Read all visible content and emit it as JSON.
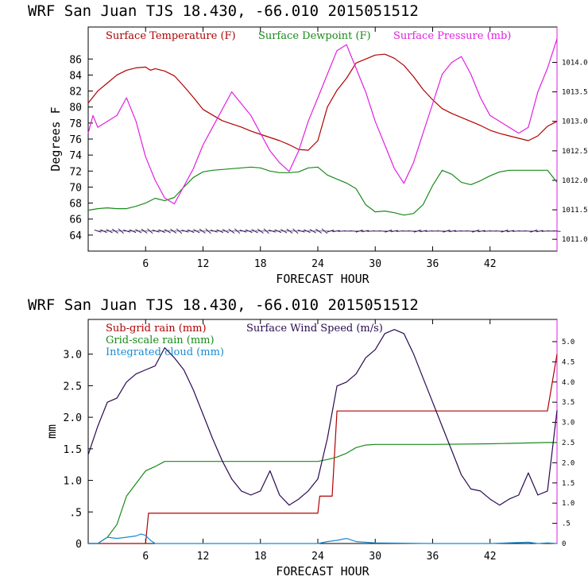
{
  "chart_data": [
    {
      "type": "line",
      "title": "WRF   San Juan TJS  18.430, -66.010  2015051512",
      "xlabel": "FORECAST HOUR",
      "ylabel": "Degrees F",
      "xlim": [
        0,
        49
      ],
      "ylim": [
        62,
        90
      ],
      "y2lim": [
        1010.8,
        1014.6
      ],
      "xticks": [
        "6",
        "12",
        "18",
        "24",
        "30",
        "36",
        "42"
      ],
      "yticks": [
        "64",
        "66",
        "68",
        "70",
        "72",
        "74",
        "76",
        "78",
        "80",
        "82",
        "84",
        "86"
      ],
      "y2ticks": [
        "1011.0",
        "1011.5",
        "1012.0",
        "1012.5",
        "1013.0",
        "1013.5",
        "1014.0"
      ],
      "colors": {
        "temp": "#b00000",
        "dew": "#1a8a1a",
        "pres": "#e020e0",
        "wind": "#2a0a50",
        "axis": "#000000"
      },
      "series": [
        {
          "name": "Surface Temperature (F)",
          "axis": "left",
          "x": [
            0,
            1,
            2,
            3,
            4,
            5,
            6,
            6.5,
            7,
            8,
            9,
            10,
            11,
            12,
            13,
            14,
            15,
            16,
            17,
            18,
            19,
            20,
            21,
            22,
            23,
            24,
            25,
            26,
            27,
            28,
            29,
            30,
            31,
            32,
            33,
            34,
            35,
            36,
            37,
            38,
            39,
            40,
            41,
            42,
            43,
            44,
            45,
            46,
            47,
            48,
            49
          ],
          "values": [
            80.5,
            82,
            83,
            84,
            84.6,
            84.9,
            85,
            84.6,
            84.8,
            84.5,
            83.9,
            82.6,
            81.2,
            79.7,
            79,
            78.3,
            77.9,
            77.5,
            77,
            76.6,
            76.2,
            75.8,
            75.3,
            74.7,
            74.6,
            75.8,
            80,
            82.1,
            83.6,
            85.5,
            86,
            86.5,
            86.6,
            86.1,
            85.2,
            83.8,
            82.2,
            80.9,
            79.8,
            79.2,
            78.7,
            78.2,
            77.7,
            77.1,
            76.7,
            76.4,
            76.1,
            75.8,
            76.4,
            77.6,
            78.2
          ]
        },
        {
          "name": "Surface Dewpoint (F)",
          "axis": "left",
          "x": [
            0,
            1,
            2,
            3,
            4,
            5,
            6,
            7,
            8,
            9,
            10,
            11,
            12,
            13,
            14,
            15,
            16,
            17,
            18,
            19,
            20,
            21,
            22,
            23,
            24,
            25,
            26,
            27,
            28,
            29,
            30,
            31,
            32,
            33,
            34,
            35,
            36,
            37,
            38,
            39,
            40,
            41,
            42,
            43,
            44,
            45,
            46,
            47,
            48,
            49
          ],
          "values": [
            67.1,
            67.3,
            67.4,
            67.3,
            67.3,
            67.6,
            68,
            68.6,
            68.3,
            68.7,
            70,
            71.2,
            71.9,
            72.1,
            72.2,
            72.3,
            72.4,
            72.5,
            72.4,
            72,
            71.8,
            71.8,
            71.9,
            72.4,
            72.5,
            71.5,
            71,
            70.5,
            69.8,
            67.8,
            66.9,
            67,
            66.8,
            66.5,
            66.7,
            67.8,
            70.2,
            72.1,
            71.6,
            70.6,
            70.3,
            70.8,
            71.4,
            71.9,
            72.1,
            72.1,
            72.1,
            72.1,
            72.1,
            70.6
          ]
        },
        {
          "name": "Surface Pressure (mb)",
          "axis": "right",
          "x": [
            0,
            0.5,
            1,
            2,
            3,
            4,
            5,
            6,
            7,
            8,
            9,
            10,
            11,
            12,
            13,
            14,
            15,
            16,
            17,
            18,
            19,
            20,
            21,
            22,
            23,
            24,
            25,
            26,
            27,
            28,
            29,
            30,
            31,
            32,
            33,
            34,
            35,
            36,
            37,
            38,
            39,
            40,
            41,
            42,
            43,
            44,
            45,
            46,
            47,
            48,
            49
          ],
          "values": [
            1012.8,
            1013.1,
            1012.9,
            1013.0,
            1013.1,
            1013.4,
            1013.0,
            1012.4,
            1012.0,
            1011.7,
            1011.6,
            1011.9,
            1012.2,
            1012.6,
            1012.9,
            1013.2,
            1013.5,
            1013.3,
            1013.1,
            1012.8,
            1012.5,
            1012.3,
            1012.15,
            1012.5,
            1013.0,
            1013.4,
            1013.8,
            1014.2,
            1014.3,
            1013.9,
            1013.5,
            1013.0,
            1012.6,
            1012.2,
            1011.95,
            1012.3,
            1012.8,
            1013.3,
            1013.8,
            1014.0,
            1014.1,
            1013.8,
            1013.4,
            1013.1,
            1013.0,
            1012.9,
            1012.8,
            1012.9,
            1013.5,
            1013.9,
            1014.4
          ]
        }
      ],
      "legend": [
        "Surface Temperature (F)",
        "Surface Dewpoint (F)",
        "Surface Pressure (mb)"
      ],
      "wind_barbs": {
        "y_value": 64.5,
        "from_x": 1,
        "to_x": 49,
        "count": 80
      }
    },
    {
      "type": "line",
      "title": "WRF   San Juan TJS  18.430, -66.010  2015051512",
      "xlabel": "FORECAST HOUR",
      "ylabel": "mm",
      "xlim": [
        0,
        49
      ],
      "ylim": [
        0,
        3.55
      ],
      "y2lim": [
        0,
        5.55
      ],
      "xticks": [
        "6",
        "12",
        "18",
        "24",
        "30",
        "36",
        "42"
      ],
      "yticks": [
        "0",
        " .5",
        "1.0",
        "1.5",
        "2.0",
        "2.5",
        "3.0"
      ],
      "y2ticks": [
        "0",
        ".5",
        "1.0",
        "1.5",
        "2.0",
        "2.5",
        "3.0",
        "3.5",
        "4.0",
        "4.5",
        "5.0"
      ],
      "series": [
        {
          "name": "Sub-grid rain (mm)",
          "axis": "left",
          "x": [
            0,
            6,
            6.3,
            24,
            24.2,
            25.5,
            26,
            26.2,
            48,
            49
          ],
          "values": [
            0,
            0,
            0.48,
            0.48,
            0.75,
            0.75,
            2.1,
            2.1,
            2.1,
            3.0
          ]
        },
        {
          "name": "Grid-scale rain (mm)",
          "axis": "left",
          "x": [
            0,
            1,
            2,
            3,
            4,
            5,
            6,
            7,
            8,
            9,
            12,
            18,
            24,
            25,
            26,
            27,
            28,
            29,
            30,
            36,
            42,
            48,
            49
          ],
          "values": [
            0,
            0,
            0.1,
            0.3,
            0.75,
            0.95,
            1.15,
            1.22,
            1.3,
            1.3,
            1.3,
            1.3,
            1.3,
            1.33,
            1.37,
            1.43,
            1.52,
            1.56,
            1.57,
            1.57,
            1.58,
            1.6,
            1.6
          ]
        },
        {
          "name": "Integrated cloud (mm)",
          "axis": "left",
          "x": [
            0,
            1,
            1.5,
            2,
            3,
            4,
            5,
            5.5,
            6,
            6.5,
            7,
            12,
            24,
            25,
            26,
            27,
            28,
            30,
            36,
            42,
            46,
            47,
            48,
            49
          ],
          "values": [
            0,
            0,
            0.05,
            0.1,
            0.08,
            0.1,
            0.12,
            0.15,
            0.13,
            0.05,
            0,
            0,
            0,
            0.03,
            0.05,
            0.08,
            0.03,
            0.01,
            0,
            0,
            0.02,
            0,
            0.01,
            0
          ]
        },
        {
          "name": "Surface Wind Speed (m/s)",
          "axis": "right",
          "x": [
            0,
            1,
            2,
            3,
            4,
            5,
            6,
            7,
            8,
            9,
            10,
            11,
            12,
            13,
            14,
            15,
            16,
            17,
            18,
            19,
            20,
            21,
            22,
            23,
            24,
            25,
            26,
            27,
            28,
            29,
            30,
            31,
            32,
            33,
            34,
            35,
            36,
            37,
            38,
            39,
            40,
            41,
            42,
            43,
            44,
            45,
            46,
            47,
            48,
            49
          ],
          "values": [
            2.2,
            2.9,
            3.5,
            3.6,
            4.0,
            4.2,
            4.3,
            4.4,
            4.85,
            4.6,
            4.3,
            3.8,
            3.2,
            2.6,
            2.05,
            1.6,
            1.3,
            1.2,
            1.3,
            1.8,
            1.2,
            0.95,
            1.1,
            1.3,
            1.6,
            2.6,
            3.9,
            4.0,
            4.2,
            4.6,
            4.8,
            5.2,
            5.3,
            5.2,
            4.7,
            4.1,
            3.5,
            2.9,
            2.3,
            1.7,
            1.35,
            1.3,
            1.1,
            0.95,
            1.1,
            1.2,
            1.75,
            1.2,
            1.3,
            3.3
          ]
        }
      ],
      "legend": [
        "Sub-grid rain (mm)",
        "Surface Wind Speed (m/s)",
        "Grid-scale rain (mm)",
        "Integrated cloud (mm)"
      ]
    }
  ]
}
